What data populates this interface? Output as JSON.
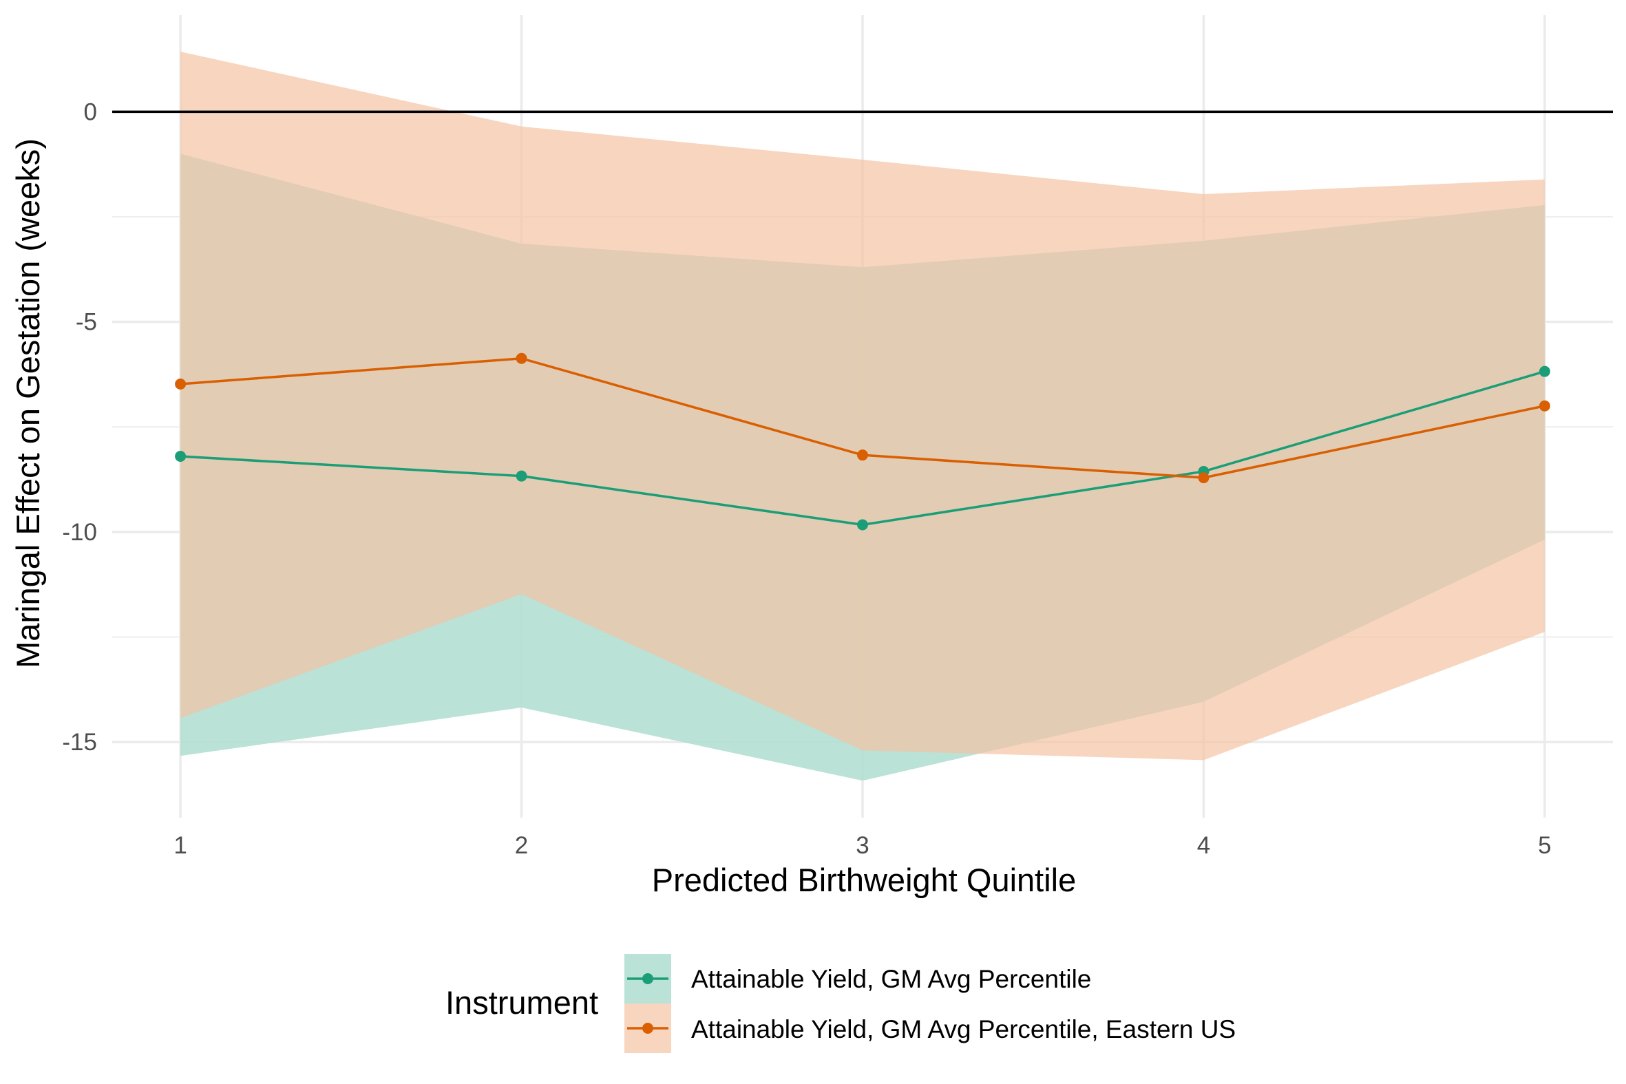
{
  "chart_data": {
    "type": "line",
    "title": "",
    "xlabel": "Predicted Birthweight Quintile",
    "ylabel": "Maringal Effect on Gestation (weeks)",
    "x": [
      1,
      2,
      3,
      4,
      5
    ],
    "x_ticks": [
      "1",
      "2",
      "3",
      "4",
      "5"
    ],
    "y_ticks": [
      "0",
      "-5",
      "-10",
      "-15"
    ],
    "xlim": [
      0.8,
      5.2
    ],
    "ylim": [
      -16.8,
      2.3
    ],
    "grid": true,
    "reference_line_y": 0,
    "legend": {
      "title": "Instrument",
      "position": "bottom"
    },
    "series": [
      {
        "name": "Attainable Yield, GM Avg Percentile",
        "color": "#1b9e77",
        "fill": "#b2dfd2",
        "values": [
          -8.2,
          -8.67,
          -9.83,
          -8.56,
          -6.18
        ],
        "lower": [
          -15.33,
          -14.18,
          -15.92,
          -14.04,
          -10.18
        ],
        "upper": [
          -1.0,
          -3.14,
          -3.7,
          -3.07,
          -2.22
        ]
      },
      {
        "name": "Attainable Yield, GM Avg Percentile, Eastern US",
        "color": "#d95f02",
        "fill": "#f3c3a4",
        "values": [
          -6.48,
          -5.87,
          -8.17,
          -8.71,
          -7.0
        ],
        "lower": [
          -14.43,
          -11.48,
          -15.2,
          -15.43,
          -12.38
        ],
        "upper": [
          1.43,
          -0.35,
          -1.14,
          -1.96,
          -1.61
        ]
      }
    ]
  }
}
